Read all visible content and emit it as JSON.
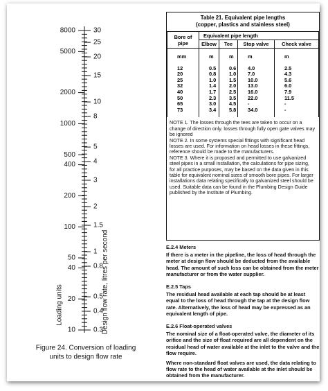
{
  "figure": {
    "caption": [
      "Figure 24. Conversion of loading",
      "units to design flow rate"
    ],
    "left_axis": {
      "title": "Loading units",
      "labels": [
        8000,
        5000,
        2000,
        1000,
        500,
        400,
        200,
        100,
        50,
        40,
        20,
        10
      ]
    },
    "right_axis": {
      "title": "Design flow rate, litres per second",
      "labels": [
        30,
        25,
        20,
        15,
        10,
        8,
        5,
        4,
        3,
        2,
        1.5,
        1,
        0.8,
        0.5,
        0.4,
        0.3
      ]
    }
  },
  "table": {
    "title": [
      "Table 21. Equivalent pipe lengths",
      "(copper, plastics and stainless steel)"
    ],
    "header": {
      "bore": "Bore of pipe",
      "group": "Equivalent pipe length",
      "columns": [
        "Elbow",
        "Tee",
        "Stop valve",
        "Check valve"
      ]
    },
    "units": [
      "mm",
      "m",
      "m",
      "m",
      "m"
    ],
    "rows": [
      [
        "12",
        "0.5",
        "0.6",
        "4.0",
        "2.5"
      ],
      [
        "20",
        "0.8",
        "1.0",
        "7.0",
        "4.3"
      ],
      [
        "25",
        "1.0",
        "1.5",
        "10.0",
        "5.6"
      ],
      [
        "32",
        "1.4",
        "2.0",
        "13.0",
        "6.0"
      ],
      [
        "40",
        "1.7",
        "2.5",
        "16.0",
        "7.9"
      ],
      [
        "50",
        "2.3",
        "3.5",
        "22.0",
        "11.5"
      ],
      [
        "65",
        "3.0",
        "4.5",
        "-",
        "-"
      ],
      [
        "73",
        "3.4",
        "5.8",
        "34.0",
        "-"
      ]
    ],
    "notes": [
      "NOTE 1. The losses through the tees are taken to occur on a change of direction only. losses through fully open gate valves may be ignored",
      "NOTE 2. In some systems special fittings with significant head losses are used. For information on head losses in these fittings, reference should be made to the manufacturers.",
      "NOTE 3. Where it is proposed and permitted to use galvanized steel pipes in a small installation, the calculations for pipe sizing, for all practice purposes, may be based on the data given in this table for equivalent nominal sizes of smooth bore pipes. For larger installations data relating specifically to galvanized steel should be used. Suitable data can be found in the Plumbing Design Guide published by the Institute of Plumbing."
    ]
  },
  "sections": [
    {
      "heading": "E.2.4 Meters",
      "paragraphs": [
        "If there is a meter in the pipeline, the loss of head through the meter at design flow should be deducted from the available head. The amount of such loss can be obtained from the meter manufacturer or from the water supplier."
      ]
    },
    {
      "heading": "E.2.5 Taps",
      "paragraphs": [
        "The residual head available at each tap should be at least equal to the loss of head through the tap at the design flow rate. Alternatively, the loss of head may be expressed as an equivalent length of pipe."
      ]
    },
    {
      "heading": "E.2.6 Float-operated valves",
      "paragraphs": [
        "The nominal size of a float-operated valve, the diameter of its orifice and the size of float required are all dependent on the residual head of water available at the inlet to the valve and the flow require.",
        "Where non-standard float valves are used, the data relating to flow rate to the head of water available at the inlet should be obtained from the manufacturer."
      ]
    }
  ]
}
